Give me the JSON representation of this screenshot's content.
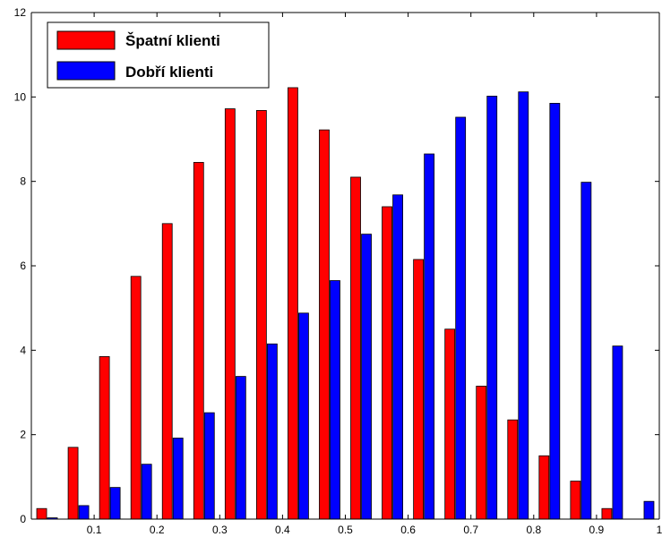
{
  "chart_data": {
    "type": "bar",
    "title": "",
    "xlabel": "",
    "ylabel": "",
    "x": [
      0.025,
      0.075,
      0.125,
      0.175,
      0.225,
      0.275,
      0.325,
      0.375,
      0.425,
      0.475,
      0.525,
      0.575,
      0.625,
      0.675,
      0.725,
      0.775,
      0.825,
      0.875,
      0.925,
      0.975
    ],
    "series": [
      {
        "name": "Špatní klienti",
        "color": "#ff0000",
        "values": [
          0.25,
          1.7,
          3.85,
          5.75,
          7.0,
          8.45,
          9.72,
          9.68,
          10.22,
          9.22,
          8.1,
          7.4,
          6.15,
          4.5,
          3.15,
          2.35,
          1.5,
          0.9,
          0.25,
          null
        ]
      },
      {
        "name": "Dobří klienti",
        "color": "#0000ff",
        "values": [
          0.03,
          0.32,
          0.75,
          1.3,
          1.92,
          2.52,
          3.38,
          4.15,
          4.88,
          5.65,
          6.75,
          7.68,
          8.65,
          9.52,
          10.02,
          10.12,
          9.85,
          7.98,
          4.1,
          0.42
        ]
      }
    ],
    "xlim": [
      0,
      1
    ],
    "ylim": [
      0,
      12
    ],
    "xticks": [
      "0.1",
      "0.2",
      "0.3",
      "0.4",
      "0.5",
      "0.6",
      "0.7",
      "0.8",
      "0.9",
      "1"
    ],
    "yticks": [
      "0",
      "2",
      "4",
      "6",
      "8",
      "10",
      "12"
    ],
    "grid": false,
    "legend_position": "top-left"
  }
}
